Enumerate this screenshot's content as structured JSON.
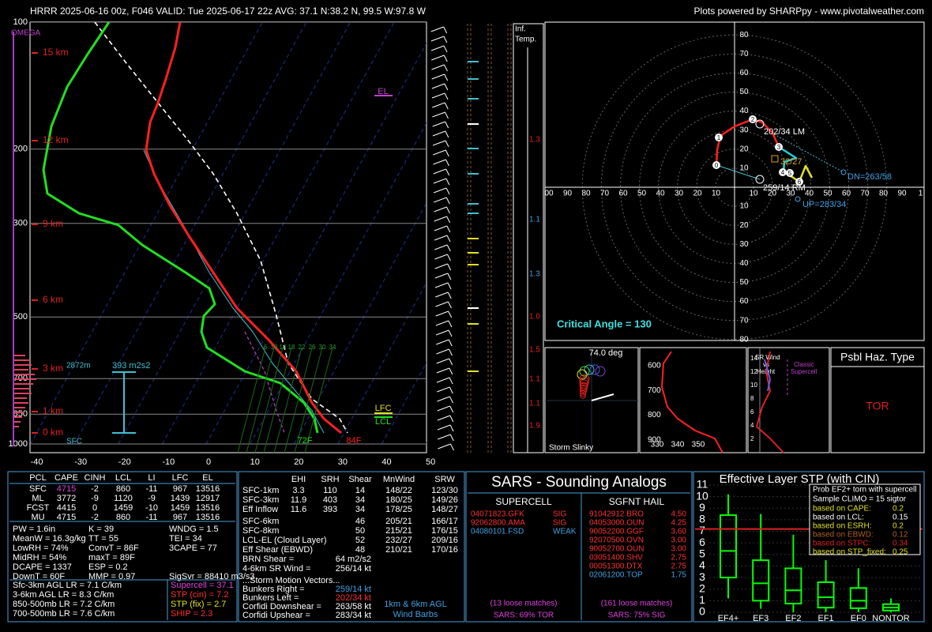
{
  "header": {
    "title": "HRRR 2025-06-16 00z, F046  VALID: Tue 2025-06-17 22z  AVG: 37.1 N:38.2 N, 99.5 W:97.8 W",
    "credit": "Plots powered by SHARPpy - www.pivotalweather.com"
  },
  "skewt": {
    "omega": "OMEGA",
    "pressure_ticks": [
      100,
      200,
      300,
      500,
      700,
      850,
      1000
    ],
    "temp_ticks": [
      -40,
      -30,
      -20,
      -10,
      0,
      10,
      20,
      30,
      40,
      50
    ],
    "height_labels": [
      "15 km",
      "12 km",
      "9 km",
      "6 km",
      "3 km",
      "1 km",
      "0 km"
    ],
    "wind_speeds": [
      6,
      10,
      14,
      18,
      22,
      26,
      30,
      34
    ],
    "el": "EL",
    "lfc": "LFC",
    "lcl": "LCL",
    "sfc": "SFC",
    "dewpoint_sfc": "72F",
    "temp_sfc": "84F",
    "eff_top": "2872m",
    "eff_srh": "393 m2s2"
  },
  "inflow": {
    "title": [
      "Inf.",
      "Temp."
    ],
    "values": [
      "1.3",
      "1.1",
      "1.3",
      "1.0",
      "1.5",
      "1.1",
      "1.1",
      "1.9"
    ]
  },
  "hodograph": {
    "rings_up": [
      10,
      20,
      30,
      40,
      50,
      60,
      70,
      80
    ],
    "rings_down": [
      10,
      20,
      30,
      40,
      50,
      60,
      70,
      80
    ],
    "rings_left": [
      "00",
      "90",
      "80",
      "70",
      "60",
      "50",
      "40",
      "30",
      "20",
      "10"
    ],
    "rings_right": [
      "10",
      "20",
      "30",
      "40",
      "50",
      "60",
      "70",
      "80",
      "90",
      "1"
    ],
    "km_markers": [
      "0",
      "1",
      "2",
      "3",
      "4",
      "5",
      "6"
    ],
    "lm": "202/34 LM",
    "mean": "32/27",
    "rm": "259/14 RM",
    "dn": "DN=263/58",
    "up": "UP=283/34",
    "critical_angle": "Critical Angle = 130"
  },
  "slinky": {
    "angle": "74.0 deg",
    "title": "Storm Slinky"
  },
  "theta_e": {
    "pressures": [
      600,
      700,
      800,
      900
    ],
    "thetas": [
      330,
      340,
      350
    ]
  },
  "sr_wind": {
    "title": [
      "SR Wind",
      "vs",
      "Height"
    ],
    "heights": [
      14,
      12,
      10,
      8,
      6,
      4,
      2
    ],
    "note": [
      "Classic",
      "Supercell"
    ]
  },
  "hazard": {
    "title": "Psbl Haz. Type",
    "value": "TOR"
  },
  "thermo": {
    "header": [
      "PCL",
      "CAPE",
      "CINH",
      "LCL",
      "LI",
      "LFC",
      "EL"
    ],
    "rows": [
      [
        "SFC",
        "4715",
        "-2",
        "860",
        "-11",
        "967",
        "13516"
      ],
      [
        "ML",
        "3772",
        "-9",
        "1120",
        "-9",
        "1439",
        "12917"
      ],
      [
        "FCST",
        "4415",
        "0",
        "1459",
        "-10",
        "1459",
        "13516"
      ],
      [
        "MU",
        "4715",
        "-2",
        "860",
        "-11",
        "967",
        "13516"
      ]
    ],
    "indices": [
      [
        "PW = 1.6in",
        "K = 39",
        "WNDG = 1.5"
      ],
      [
        "MeanW = 16.3g/kg",
        "TT = 55",
        "TEI = 34"
      ],
      [
        "LowRH = 74%",
        "ConvT = 86F",
        "3CAPE = 77"
      ],
      [
        "MidRH = 54%",
        "maxT = 89F"
      ],
      [
        "DCAPE = 1337",
        "ESP = 0.2"
      ],
      [
        "DownT = 60F",
        "MMP = 0.97",
        "SigSvr = 88410 m3/s3"
      ]
    ],
    "lapse_rates": [
      "Sfc-3km AGL LR = 7.1 C/km",
      "3-6km AGL LR = 8.3 C/km",
      "850-500mb LR = 7.2 C/km",
      "700-500mb LR = 7.6 C/km"
    ],
    "composites": [
      "Supercell = 37.1",
      "STP (cin) = 7.2",
      "STP (fix) = 2.7",
      "SHIP = 2.3"
    ]
  },
  "kinematic": {
    "header": [
      "EHI",
      "SRH",
      "Shear",
      "MnWind",
      "SRW"
    ],
    "rows_a": [
      [
        "SFC-1km",
        "3.3",
        "110",
        "14",
        "148/22",
        "123/30"
      ],
      [
        "SFC-3km",
        "11.9",
        "403",
        "34",
        "180/25",
        "149/26"
      ],
      [
        "Eff Inflow",
        "11.6",
        "393",
        "34",
        "178/25",
        "148/27"
      ]
    ],
    "rows_b": [
      [
        "SFC-6km",
        "46",
        "205/21",
        "166/17"
      ],
      [
        "SFC-8km",
        "50",
        "215/21",
        "176/15"
      ],
      [
        "LCL-EL (Cloud Layer)",
        "52",
        "232/27",
        "209/16"
      ],
      [
        "Eff Shear (EBWD)",
        "48",
        "210/21",
        "170/16"
      ]
    ],
    "brn": [
      "BRN Shear =",
      "64 m2/s2"
    ],
    "sr46": [
      "4-6km SR Wind =",
      "256/14 kt"
    ],
    "storm_title": "...Storm Motion Vectors...",
    "storm": [
      [
        "Bunkers Right =",
        "259/14 kt"
      ],
      [
        "Bunkers Left =",
        "202/34 kt"
      ],
      [
        "Corfidi Downshear =",
        "263/58 kt"
      ],
      [
        "Corfidi Upshear =",
        "283/34 kt"
      ]
    ],
    "barb_note": [
      "1km & 6km AGL",
      "Wind Barbs"
    ]
  },
  "sars": {
    "title": "SARS - Sounding Analogs",
    "supercell_title": "SUPERCELL",
    "hail_title": "SGFNT HAIL",
    "supercell": [
      [
        "04071823.GFK",
        "SIG"
      ],
      [
        "92062800.AMA",
        "SIG"
      ],
      [
        "04080101.FSD",
        "WEAK"
      ]
    ],
    "hail": [
      [
        "91042912.BRO",
        "4.50"
      ],
      [
        "04053000.OUN",
        "4.25"
      ],
      [
        "90052200.GGF",
        "3.60"
      ],
      [
        "92070500.OVN",
        "3.00"
      ],
      [
        "90052700.OUN",
        "3.00"
      ],
      [
        "03051400.SHV",
        "2.75"
      ],
      [
        "00051300.DTX",
        "2.75"
      ],
      [
        "02061200.TOP",
        "1.75"
      ]
    ],
    "supercell_matches": "(13 loose matches)",
    "supercell_result": "SARS: 69% TOR",
    "hail_matches": "(161 loose matches)",
    "hail_result": "SARS: 75% SIG"
  },
  "chart_data": {
    "type": "box",
    "title": "Effective Layer STP (with CIN)",
    "categories": [
      "EF4+",
      "EF3",
      "EF2",
      "EF1",
      "EF0",
      "NONTOR"
    ],
    "boxes": [
      {
        "low": 1.2,
        "q1": 3.0,
        "median": 5.3,
        "q3": 8.4,
        "high": 10.2
      },
      {
        "low": 0.3,
        "q1": 1.0,
        "median": 2.5,
        "q3": 4.5,
        "high": 8.5
      },
      {
        "low": 0,
        "q1": 0.75,
        "median": 1.9,
        "q3": 3.8,
        "high": 6.7
      },
      {
        "low": 0,
        "q1": 0.4,
        "median": 1.3,
        "q3": 2.6,
        "high": 4.5
      },
      {
        "low": 0,
        "q1": 0.35,
        "median": 1.0,
        "q3": 2.1,
        "high": 3.8
      },
      {
        "low": 0,
        "q1": 0.15,
        "median": 0.4,
        "q3": 0.7,
        "high": 1.2
      }
    ],
    "color": "#00ff00",
    "current_value": 7.2,
    "ylim": [
      0,
      11
    ],
    "yticks": [
      0,
      1,
      2,
      3,
      4,
      5,
      6,
      7,
      8,
      9,
      10,
      11
    ],
    "legend": {
      "title": [
        "Prob EF2+ torn with supercell",
        "Sample CLIMO = 15 sigtor"
      ],
      "rows": [
        [
          "based on CAPE:",
          "0.2"
        ],
        [
          "based on LCL:",
          "0.15"
        ],
        [
          "based on ESRH:",
          "0.2"
        ],
        [
          "based on EBWD:",
          "0.12"
        ],
        [
          "based on STPC:",
          "0.34"
        ],
        [
          "based on STP_fixed:",
          "0.25"
        ]
      ]
    }
  }
}
